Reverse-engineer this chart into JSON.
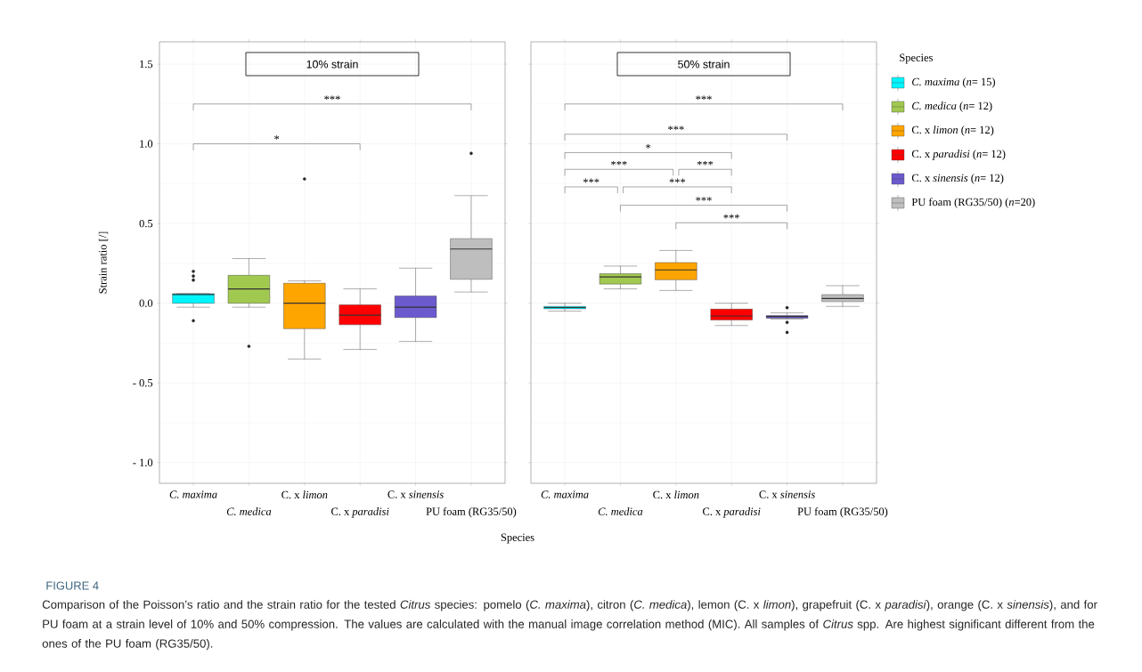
{
  "chart_data": [
    {
      "type": "box",
      "title": "10% strain",
      "xlabel": "Species",
      "ylabel": "Strain ratio [/]",
      "categories": [
        "*C. maxima*",
        "*C. medica*",
        "C. x *limon*",
        "C. x *paradisi*",
        "C. x *sinensis*",
        "PU foam (RG35/50)"
      ],
      "ylim": [
        -1.13,
        1.64
      ],
      "yticks": [
        {
          "value": -1.0,
          "label": "- 1.0"
        },
        {
          "value": -0.5,
          "label": "- 0.5"
        },
        {
          "value": 0.0,
          "label": "0.0"
        },
        {
          "value": 0.5,
          "label": "0.5"
        },
        {
          "value": 1.0,
          "label": "1.0"
        },
        {
          "value": 1.5,
          "label": "1.5"
        }
      ],
      "grid": true,
      "series": [
        {
          "color": "#00f5ff",
          "boxes": [
            {
              "low": -0.025,
              "q1": 0.0,
              "median": 0.055,
              "q3": 0.06,
              "high": 0.06,
              "outliers": [
                0.2,
                0.17,
                0.145,
                -0.11
              ]
            },
            null,
            null,
            null,
            null,
            null
          ]
        },
        {
          "color": "#a1c94f",
          "boxes": [
            null,
            {
              "low": -0.025,
              "q1": 0.0,
              "median": 0.09,
              "q3": 0.175,
              "high": 0.28,
              "outliers": [
                -0.27
              ]
            },
            null,
            null,
            null,
            null
          ]
        },
        {
          "color": "#ffa500",
          "boxes": [
            null,
            null,
            {
              "low": -0.35,
              "q1": -0.16,
              "median": 0.0,
              "q3": 0.125,
              "high": 0.14,
              "outliers": [
                0.78
              ]
            },
            null,
            null,
            null
          ]
        },
        {
          "color": "#ff0000",
          "boxes": [
            null,
            null,
            null,
            {
              "low": -0.29,
              "q1": -0.135,
              "median": -0.075,
              "q3": -0.01,
              "high": 0.09
            },
            null,
            null
          ]
        },
        {
          "color": "#6a5acd",
          "boxes": [
            null,
            null,
            null,
            null,
            {
              "low": -0.24,
              "q1": -0.09,
              "median": -0.025,
              "q3": 0.045,
              "high": 0.22
            },
            null
          ]
        },
        {
          "color": "#bebebe",
          "boxes": [
            null,
            null,
            null,
            null,
            null,
            {
              "low": 0.07,
              "q1": 0.15,
              "median": 0.34,
              "q3": 0.405,
              "high": 0.675,
              "outliers": [
                0.94
              ]
            }
          ]
        }
      ],
      "annotations": [
        "***",
        "*",
        "FIGURE 4",
        "Comparison of the Poisson’s ratio and the strain ratio for the tested *Citrus* species: pomelo (*C. maxima*), citron (*C. medica*), lemon (C. x *limon*), grapefruit (C. x *paradisi*), orange (C. x *sinensis*), and for PU foam at a strain level of 10% and 50% compression. The values are calculated with the manual image correlation method (MIC). All samples of *Citrus* spp. Are highest significant different from the ones of the PU foam (RG35/50)."
      ]
    },
    {
      "type": "box",
      "title": "50% strain",
      "categories": [
        "*C. maxima*",
        "*C. medica*",
        "C. x *limon*",
        "C. x *paradisi*",
        "C. x *sinensis*",
        "PU foam (RG35/50)"
      ],
      "ylim": [
        -1.13,
        1.64
      ],
      "yticks": [
        {
          "value": -1.0,
          "label": null
        },
        {
          "value": -0.5,
          "label": null
        },
        {
          "value": 0.0,
          "label": null
        },
        {
          "value": 0.5,
          "label": null
        },
        {
          "value": 1.0,
          "label": null
        },
        {
          "value": 1.5,
          "label": null
        }
      ],
      "tick_labels": "x",
      "grid": true,
      "legend": "right",
      "legend_title": "Species",
      "series": [
        {
          "name": "*C. maxima* (*n*= 15)",
          "color": "#00f5ff",
          "boxes": [
            {
              "low": -0.05,
              "q1": -0.035,
              "median": -0.027,
              "q3": -0.02,
              "high": 0.0
            },
            null,
            null,
            null,
            null,
            null
          ]
        },
        {
          "name": "*C. medica* (*n*= 12)",
          "color": "#a1c94f",
          "boxes": [
            null,
            {
              "low": 0.09,
              "q1": 0.12,
              "median": 0.165,
              "q3": 0.185,
              "high": 0.233
            },
            null,
            null,
            null,
            null
          ]
        },
        {
          "name": "C. x *limon* (*n*= 12)",
          "color": "#ffa500",
          "boxes": [
            null,
            null,
            {
              "low": 0.08,
              "q1": 0.147,
              "median": 0.209,
              "q3": 0.255,
              "high": 0.331
            },
            null,
            null,
            null
          ]
        },
        {
          "name": "C. x *paradisi* (*n*= 12)",
          "color": "#ff0000",
          "boxes": [
            null,
            null,
            null,
            {
              "low": -0.14,
              "q1": -0.105,
              "median": -0.08,
              "q3": -0.037,
              "high": 0.0
            },
            null,
            null
          ]
        },
        {
          "name": "C. x *sinensis* (*n*= 12)",
          "color": "#6a5acd",
          "boxes": [
            null,
            null,
            null,
            null,
            {
              "low": -0.1,
              "q1": -0.094,
              "median": -0.084,
              "q3": -0.078,
              "high": -0.06,
              "outliers": [
                -0.028,
                -0.12,
                -0.183
              ]
            },
            null
          ]
        },
        {
          "name": "PU foam (RG35/50) (*n*=20)",
          "color": "#bebebe",
          "boxes": [
            null,
            null,
            null,
            null,
            null,
            {
              "low": -0.02,
              "q1": 0.01,
              "median": 0.03,
              "q3": 0.054,
              "high": 0.11
            }
          ]
        }
      ],
      "annotations": [
        "***",
        "***",
        "*",
        "***",
        "***",
        "***",
        "***",
        "***",
        "***"
      ]
    }
  ]
}
